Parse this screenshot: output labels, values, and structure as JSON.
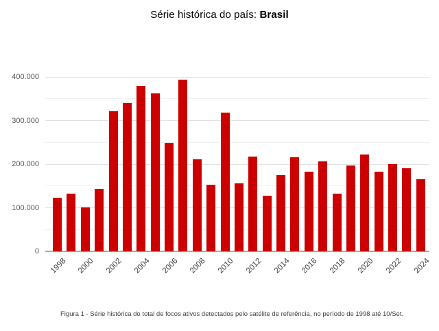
{
  "title": {
    "prefix": "Série histórica do país: ",
    "country": "Brasil"
  },
  "caption": "Figura 1 - Série histórica do total de focos ativos detectados pelo satélite de referência, no período de 1998 até 10/Set.",
  "colors": {
    "bar": "#cc0000",
    "grid_major": "#e2e2e2",
    "grid_minor": "#f1f1f1",
    "axis_line": "#a8a8a8",
    "y_tick_label": "#58585a",
    "x_tick_label": "#3c4043",
    "title_text": "#000000",
    "caption_text": "#3f3f3f"
  },
  "chart_data": {
    "type": "bar",
    "title": "Série histórica do país: Brasil",
    "xlabel": "",
    "ylabel": "",
    "categories": [
      1998,
      1999,
      2000,
      2001,
      2002,
      2003,
      2004,
      2005,
      2006,
      2007,
      2008,
      2009,
      2010,
      2011,
      2012,
      2013,
      2014,
      2015,
      2016,
      2017,
      2018,
      2019,
      2020,
      2021,
      2022,
      2023,
      2024
    ],
    "values": [
      123000,
      133000,
      101000,
      144000,
      320500,
      340000,
      379000,
      362000,
      249000,
      393000,
      211000,
      153000,
      318500,
      156000,
      217000,
      128000,
      175000,
      216000,
      183000,
      207000,
      132000,
      197000,
      222000,
      182000,
      200000,
      190000,
      166000
    ],
    "ylim": [
      0,
      400000
    ],
    "y_major_step": 100000,
    "y_minor_step": 50000,
    "yticks": [
      {
        "value": 0,
        "label": "0"
      },
      {
        "value": 100000,
        "label": "100.000"
      },
      {
        "value": 200000,
        "label": "200.000"
      },
      {
        "value": 300000,
        "label": "300.000"
      },
      {
        "value": 400000,
        "label": "400.000"
      }
    ],
    "xtick_labeled_years": [
      1998,
      2000,
      2002,
      2004,
      2006,
      2008,
      2010,
      2012,
      2014,
      2016,
      2018,
      2020,
      2022,
      2024
    ],
    "grid": true,
    "legend": "none",
    "series_name": "Focos ativos"
  }
}
